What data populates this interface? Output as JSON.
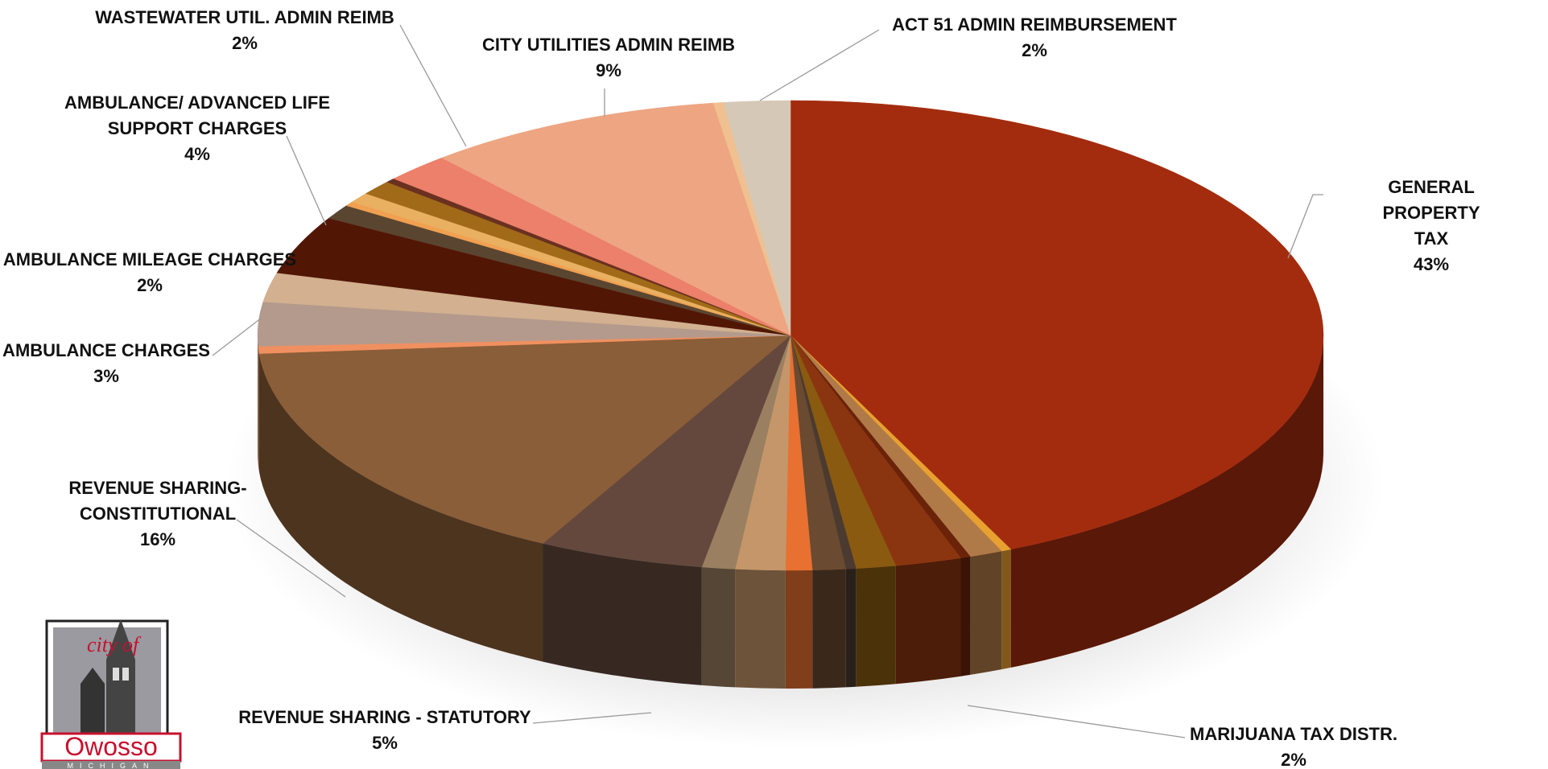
{
  "chart_data": {
    "type": "pie3d",
    "categories": [
      "GENERAL PROPERTY TAX",
      null,
      null,
      null,
      "MARIJUANA TAX DISTR.",
      null,
      null,
      null,
      null,
      null,
      null,
      "REVENUE SHARING - STATUTORY",
      "REVENUE SHARING-\nCONSTITUTIONAL",
      null,
      "AMBULANCE CHARGES",
      "AMBULANCE MILEAGE CHARGES",
      "AMBULANCE/ ADVANCED LIFE\nSUPPORT CHARGES",
      null,
      null,
      null,
      null,
      null,
      "WASTEWATER UTIL. ADMIN REIMB",
      "CITY UTILITIES ADMIN REIMB",
      null,
      "ACT 51 ADMIN REIMBURSEMENT"
    ],
    "values": [
      43,
      0.3,
      1,
      0.3,
      2,
      1.2,
      0.3,
      1,
      0.8,
      1.5,
      1,
      5,
      16,
      0.5,
      3,
      2,
      4,
      1,
      0.3,
      0.7,
      1,
      0.3,
      2,
      9,
      0.3,
      2
    ],
    "value_labels": [
      "43%",
      null,
      null,
      null,
      "2%",
      null,
      null,
      null,
      null,
      null,
      null,
      "5%",
      "16%",
      null,
      "3%",
      "2%",
      "4%",
      null,
      null,
      null,
      null,
      null,
      "2%",
      "9%",
      null,
      "2%"
    ],
    "colors": [
      "#a32c0e",
      "#e8a030",
      "#b07a48",
      "#6a2208",
      "#8a3510",
      "#8a5a10",
      "#4a3a30",
      "#6a4a30",
      "#e87030",
      "#c4966a",
      "#9a8060",
      "#64483e",
      "#8a5e38",
      "#f09060",
      "#b49a8c",
      "#d2b090",
      "#521605",
      "#5a4530",
      "#f0a050",
      "#e8b060",
      "#a06a18",
      "#6a3020",
      "#ec806a",
      "#eea582",
      "#f0c090",
      "#d6c8b6"
    ]
  },
  "logo": {
    "top": "city of",
    "name": "Owosso",
    "state": "MICHIGAN"
  }
}
